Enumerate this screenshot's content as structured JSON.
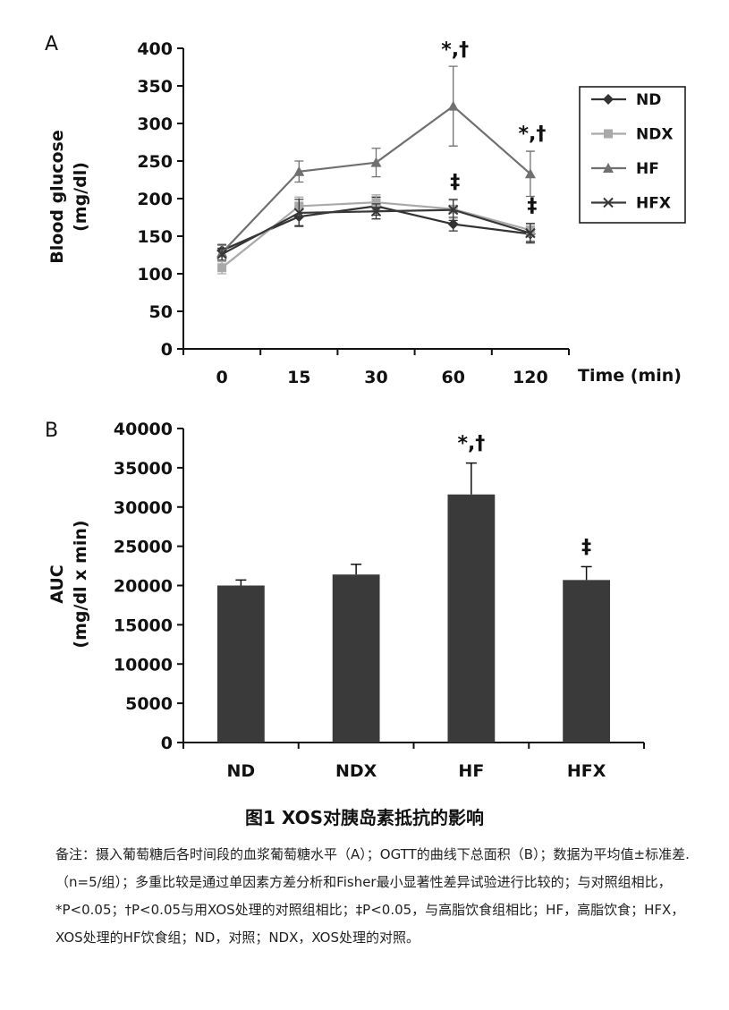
{
  "chart_data": [
    {
      "type": "line",
      "panel_label": "A",
      "xlabel": "Time (min)",
      "ylabel_lines": [
        "Blood glucose",
        "(mg/dl)"
      ],
      "categories": [
        "0",
        "15",
        "30",
        "60",
        "120"
      ],
      "ylim": [
        0,
        400
      ],
      "yticks": [
        "0",
        "50",
        "100",
        "150",
        "200",
        "250",
        "300",
        "350",
        "400"
      ],
      "legend_position": "right",
      "series": [
        {
          "name": "ND",
          "marker": "diamond",
          "color": "#333333",
          "values": [
            131,
            176,
            190,
            166,
            153
          ],
          "errors": [
            8,
            12,
            12,
            9,
            10
          ]
        },
        {
          "name": "NDX",
          "marker": "square",
          "color": "#a9a9a9",
          "values": [
            108,
            190,
            195,
            186,
            158
          ],
          "errors": [
            8,
            12,
            10,
            12,
            8
          ]
        },
        {
          "name": "HF",
          "marker": "triangle",
          "color": "#707070",
          "values": [
            128,
            236,
            248,
            323,
            233
          ],
          "errors": [
            10,
            14,
            19,
            53,
            30
          ]
        },
        {
          "name": "HFX",
          "marker": "x",
          "color": "#383838",
          "values": [
            126,
            181,
            183,
            185,
            154
          ],
          "errors": [
            8,
            18,
            10,
            14,
            13
          ]
        }
      ],
      "annotations": [
        {
          "text": "*,†",
          "category": "60",
          "y": 378
        },
        {
          "text": "‡",
          "category": "60",
          "y": 202
        },
        {
          "text": "*,†",
          "category": "120",
          "y": 266
        },
        {
          "text": "‡",
          "category": "120",
          "y": 170
        }
      ]
    },
    {
      "type": "bar",
      "panel_label": "B",
      "ylabel_lines": [
        "AUC",
        "(mg/dl x min)"
      ],
      "categories": [
        "ND",
        "NDX",
        "HF",
        "HFX"
      ],
      "values": [
        20000,
        21400,
        31600,
        20700
      ],
      "errors": [
        700,
        1300,
        4000,
        1700
      ],
      "ylim": [
        0,
        40000
      ],
      "yticks": [
        "0",
        "5000",
        "10000",
        "15000",
        "20000",
        "25000",
        "30000",
        "35000",
        "40000"
      ],
      "bar_color": "#3a3a3a",
      "annotations": [
        {
          "text": "*,†",
          "category": "HF",
          "y": 35700
        },
        {
          "text": "‡",
          "category": "HFX",
          "y": 22500
        }
      ]
    }
  ],
  "caption": {
    "title": "图1 XOS对胰岛素抵抗的影响",
    "note": "备注：摄入葡萄糖后各时间段的血浆葡萄糖水平（A）；OGTT的曲线下总面积（B）；数据为平均值±标准差.（n=5/组）；多重比较是通过单因素方差分析和Fisher最小显著性差异试验进行比较的；与对照组相比，*P<0.05；†P<0.05与用XOS处理的对照组相比；‡P<0.05，与高脂饮食组相比；HF，高脂饮食；HFX，XOS处理的HF饮食组；ND，对照；NDX，XOS处理的对照。"
  }
}
